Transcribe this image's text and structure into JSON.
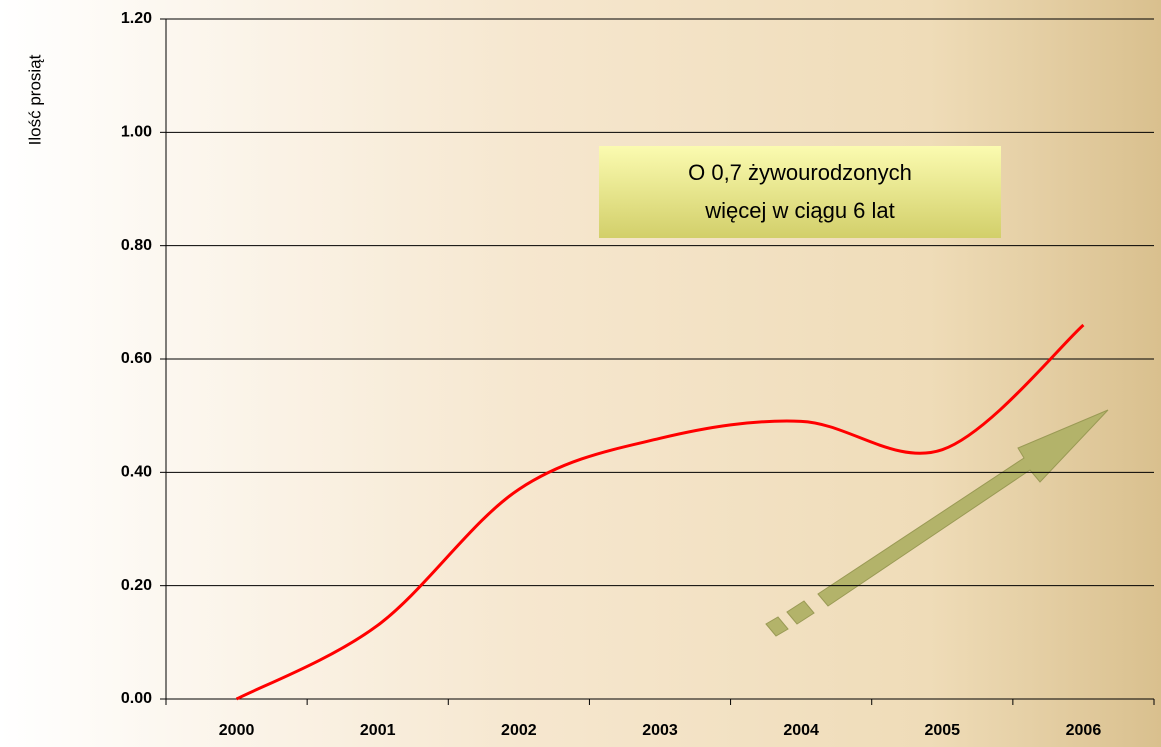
{
  "chart_data": {
    "type": "line",
    "y_label": "Ilość prosiąt",
    "annotation": [
      "O 0,7 żywourodzonych",
      "więcej w ciągu 6 lat"
    ],
    "categories": [
      "2000",
      "2001",
      "2002",
      "2003",
      "2004",
      "2005",
      "2006"
    ],
    "values": [
      0.0,
      0.13,
      0.37,
      0.46,
      0.49,
      0.44,
      0.66
    ],
    "color": "#ff0000",
    "ylim": [
      0,
      1.2
    ],
    "yticks": [
      {
        "value": 0,
        "label": "0.00"
      },
      {
        "value": 0.2,
        "label": "0.20"
      },
      {
        "value": 0.4,
        "label": "0.40"
      },
      {
        "value": 0.6,
        "label": "0.60"
      },
      {
        "value": 0.8,
        "label": "0.80"
      },
      {
        "value": 1.0,
        "label": "1.00"
      },
      {
        "value": 1.2,
        "label": "1.20"
      }
    ],
    "grid": true
  }
}
